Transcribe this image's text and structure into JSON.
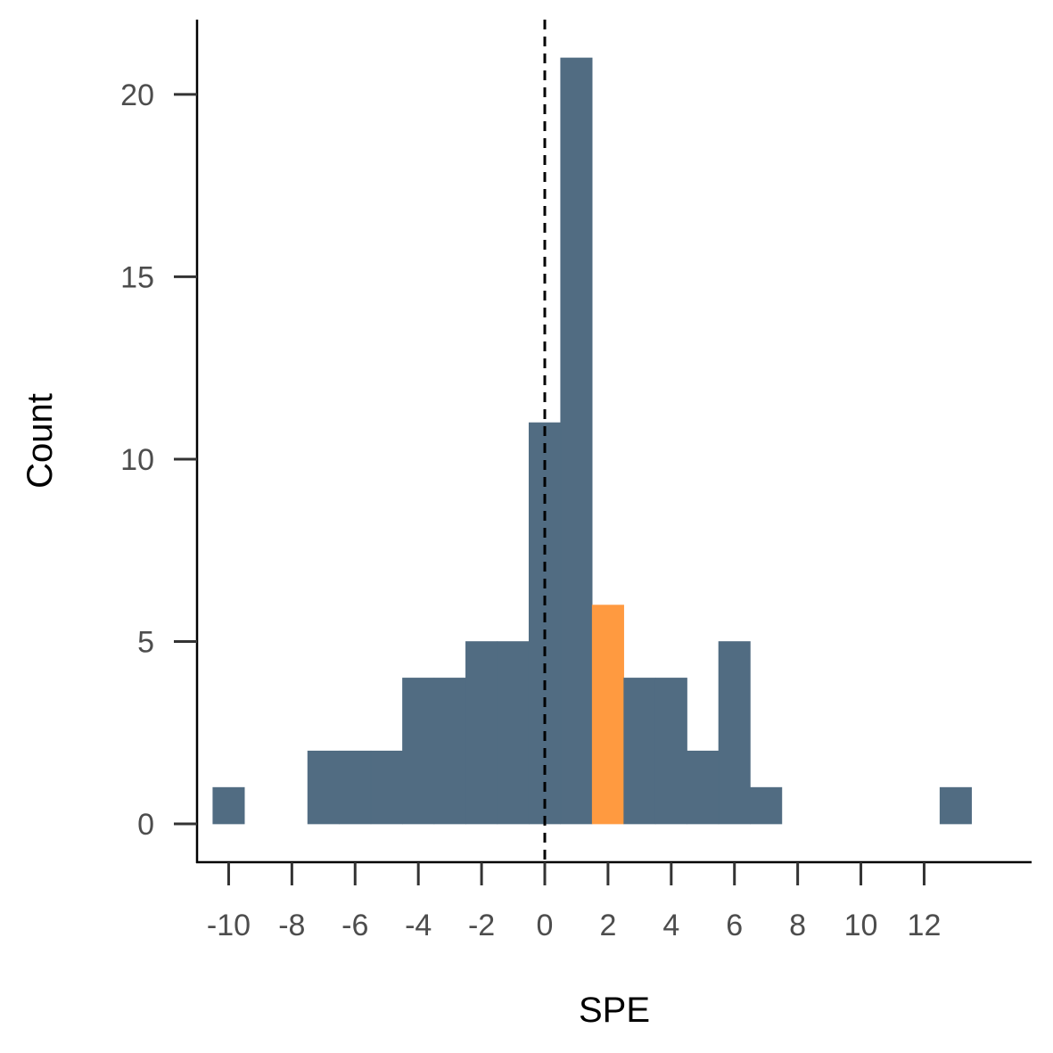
{
  "chart_data": {
    "type": "bar",
    "subtype": "histogram",
    "xlabel": "SPE",
    "ylabel": "Count",
    "xlim": [
      -11,
      15.4
    ],
    "ylim": [
      -1.05,
      22.05
    ],
    "x_ticks": [
      -10,
      -8,
      -6,
      -4,
      -2,
      0,
      2,
      4,
      6,
      8,
      10,
      12
    ],
    "y_ticks": [
      0,
      5,
      10,
      15,
      20
    ],
    "bin_width": 1,
    "bins": [
      {
        "x": -10,
        "count": 1
      },
      {
        "x": -9,
        "count": 0
      },
      {
        "x": -8,
        "count": 0
      },
      {
        "x": -7,
        "count": 2
      },
      {
        "x": -6,
        "count": 2
      },
      {
        "x": -5,
        "count": 2
      },
      {
        "x": -4,
        "count": 4
      },
      {
        "x": -3,
        "count": 4
      },
      {
        "x": -2,
        "count": 5
      },
      {
        "x": -1,
        "count": 5
      },
      {
        "x": 0,
        "count": 11
      },
      {
        "x": 1,
        "count": 21
      },
      {
        "x": 2,
        "count": 6,
        "highlight": true
      },
      {
        "x": 3,
        "count": 4
      },
      {
        "x": 4,
        "count": 4
      },
      {
        "x": 5,
        "count": 2
      },
      {
        "x": 6,
        "count": 5
      },
      {
        "x": 7,
        "count": 1
      },
      {
        "x": 8,
        "count": 0
      },
      {
        "x": 9,
        "count": 0
      },
      {
        "x": 10,
        "count": 0
      },
      {
        "x": 11,
        "count": 0
      },
      {
        "x": 12,
        "count": 0
      },
      {
        "x": 13,
        "count": 1
      }
    ],
    "reference_line": {
      "x": 0,
      "style": "dashed"
    },
    "grid": false,
    "colors": {
      "bar": "#516c82",
      "highlight": "#ff9a40",
      "reference_line": "#000000"
    }
  }
}
